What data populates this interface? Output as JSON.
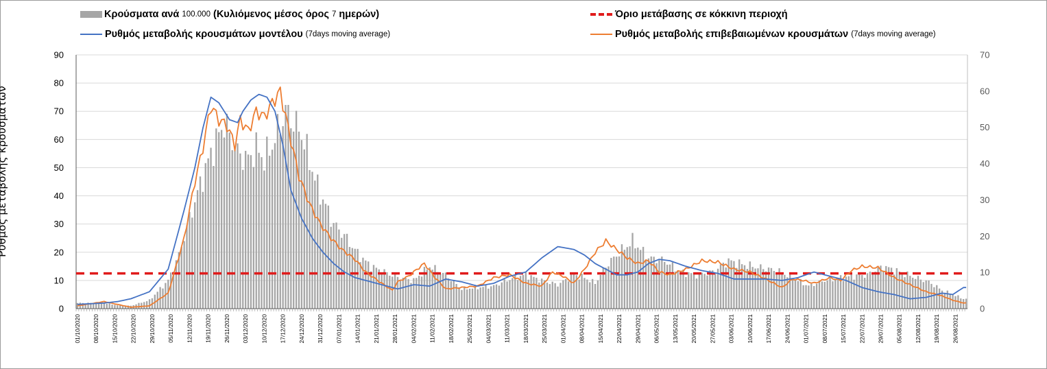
{
  "chart_data": {
    "type": "bar",
    "legend": {
      "cases_bar": {
        "text": "Κρούσματα ανά",
        "num": "100.000",
        "paren": "(Κυλιόμενος μέσος όρος",
        "days": "7",
        "end": "ημερών)"
      },
      "threshold": {
        "text": "Όριο μετάβασης σε κόκκινη περιοχή"
      },
      "model_line": {
        "text": "Ρυθμός μεταβολής κρουσμάτων μοντέλου",
        "small": "(7days moving average)"
      },
      "confirmed_line": {
        "text": "Ρυθμός μεταβολής επιβεβαιωμένων κρουσμάτων",
        "small": "(7days moving average)"
      }
    },
    "ylabel": "Ρυθμός μεταβολής κρουσμάτων",
    "ylim_left": [
      0,
      90
    ],
    "ylim_right": [
      0,
      70
    ],
    "left_ticks": [
      "0",
      "10",
      "20",
      "30",
      "40",
      "50",
      "60",
      "70",
      "80",
      "90"
    ],
    "right_ticks": [
      "0",
      "10",
      "20",
      "30",
      "40",
      "50",
      "60",
      "70"
    ],
    "x_tick_labels": [
      "01/10/2020",
      "08/10/2020",
      "15/10/2020",
      "22/10/2020",
      "29/10/2020",
      "05/11/2020",
      "12/11/2020",
      "19/11/2020",
      "26/11/2020",
      "03/12/2020",
      "10/12/2020",
      "17/12/2020",
      "24/12/2020",
      "31/12/2020",
      "07/01/2021",
      "14/01/2021",
      "21/01/2021",
      "28/01/2021",
      "04/02/2021",
      "11/02/2021",
      "18/02/2021",
      "25/02/2021",
      "04/03/2021",
      "11/03/2021",
      "18/03/2021",
      "25/03/2021",
      "01/04/2021",
      "08/04/2021",
      "15/04/2021",
      "22/04/2021",
      "29/04/2021",
      "06/05/2021",
      "13/05/2021",
      "20/05/2021",
      "27/05/2021",
      "03/06/2021",
      "10/06/2021",
      "17/06/2021",
      "24/06/2021",
      "01/07/2021",
      "08/07/2021",
      "15/07/2021",
      "22/07/2021",
      "29/07/2021",
      "05/08/2021",
      "12/08/2021",
      "19/08/2021",
      "26/08/2021"
    ],
    "threshold_value": 12.5,
    "colors": {
      "bars": "#a6a6a6",
      "model": "#4472c4",
      "confirmed": "#ed7d31",
      "threshold": "#e01b1b",
      "grid": "#d9d9d9"
    },
    "cases_keypoints": {
      "x": [
        0,
        10,
        15,
        20,
        27,
        34,
        38,
        42,
        46,
        50,
        55,
        60,
        64,
        67,
        70,
        73,
        78,
        84,
        90,
        96,
        100,
        103,
        106,
        110,
        115,
        120,
        126,
        132,
        138,
        144,
        150,
        156,
        162,
        168,
        174,
        180,
        186,
        190,
        194,
        198,
        202,
        208,
        214,
        220,
        226,
        232,
        238,
        244,
        250,
        256,
        262,
        268,
        274,
        280,
        284,
        290,
        296,
        302,
        308,
        314,
        319,
        324,
        328,
        332
      ],
      "y": [
        2.0,
        2.0,
        1.2,
        1.0,
        3.0,
        10.0,
        19.0,
        32.0,
        44.0,
        55.0,
        66.0,
        55.0,
        53.0,
        57.0,
        53.0,
        58.0,
        70.0,
        62.0,
        43.0,
        30.0,
        26.0,
        22.0,
        18.5,
        15.0,
        13.0,
        11.0,
        10.0,
        15.0,
        12.0,
        7.0,
        7.5,
        8.0,
        10.5,
        12.0,
        10.0,
        8.5,
        12.0,
        11.0,
        9.0,
        15.0,
        19.0,
        24.0,
        18.0,
        17.0,
        13.0,
        12.0,
        13.0,
        17.0,
        15.5,
        14.5,
        13.5,
        11.0,
        8.0,
        10.0,
        10.5,
        11.5,
        12.0,
        15.0,
        13.0,
        11.0,
        9.5,
        6.5,
        5.0,
        3.5
      ]
    },
    "model_keypoints": {
      "x": [
        0,
        10,
        15,
        20,
        27,
        34,
        40,
        44,
        47,
        50,
        53,
        57,
        60,
        62,
        65,
        68,
        71,
        74,
        77,
        80,
        84,
        88,
        92,
        96,
        100,
        104,
        108,
        114,
        120,
        126,
        132,
        138,
        144,
        150,
        156,
        162,
        168,
        174,
        180,
        186,
        190,
        194,
        198,
        202,
        206,
        210,
        214,
        218,
        222,
        228,
        234,
        240,
        246,
        252,
        258,
        264,
        270,
        276,
        282,
        288,
        294,
        300,
        306,
        312,
        318,
        324,
        328,
        332
      ],
      "y": [
        1.5,
        2.0,
        2.5,
        3.5,
        6.0,
        14.0,
        35.0,
        50.0,
        64.0,
        75.0,
        73.0,
        67.0,
        66.0,
        70.0,
        74.0,
        76.0,
        75.0,
        70.0,
        58.0,
        42.0,
        32.0,
        25.0,
        20.0,
        16.0,
        13.0,
        11.0,
        10.0,
        8.5,
        7.0,
        8.5,
        8.0,
        10.5,
        9.5,
        8.0,
        9.0,
        11.5,
        13.0,
        18.0,
        22.0,
        21.0,
        19.0,
        16.0,
        14.0,
        12.0,
        12.0,
        13.0,
        16.0,
        17.5,
        17.0,
        15.0,
        13.5,
        12.5,
        10.5,
        10.5,
        10.5,
        10.0,
        11.0,
        13.0,
        11.5,
        10.0,
        7.5,
        6.0,
        5.0,
        3.5,
        4.0,
        5.5,
        5.0,
        7.5
      ]
    },
    "confirmed_keypoints": {
      "x": [
        0,
        10,
        15,
        20,
        27,
        34,
        40,
        44,
        47,
        50,
        53,
        56,
        59,
        61,
        64,
        67,
        70,
        73,
        76,
        79,
        83,
        87,
        91,
        95,
        99,
        104,
        108,
        114,
        118,
        120,
        124,
        130,
        134,
        138,
        144,
        150,
        156,
        162,
        168,
        174,
        178,
        182,
        186,
        190,
        194,
        198,
        202,
        206,
        210,
        214,
        218,
        222,
        228,
        234,
        240,
        246,
        252,
        258,
        264,
        268,
        272,
        276,
        282,
        286,
        290,
        294,
        300,
        306,
        312,
        318,
        324,
        328,
        332
      ],
      "y": [
        1.0,
        2.5,
        1.5,
        0.5,
        1.0,
        5.5,
        25.0,
        45.0,
        57.0,
        72.0,
        67.0,
        65.0,
        58.0,
        67.0,
        63.0,
        70.0,
        68.0,
        73.0,
        77.0,
        64.0,
        47.0,
        37.0,
        30.0,
        25.0,
        21.0,
        17.5,
        13.0,
        9.0,
        6.5,
        9.5,
        11.5,
        16.0,
        11.0,
        7.0,
        7.5,
        8.0,
        11.0,
        12.0,
        9.0,
        8.0,
        13.0,
        11.5,
        9.0,
        14.0,
        20.0,
        24.0,
        21.0,
        18.0,
        16.0,
        17.0,
        13.0,
        12.0,
        14.0,
        17.0,
        16.5,
        14.0,
        13.0,
        10.5,
        7.5,
        10.5,
        10.0,
        9.0,
        11.0,
        10.0,
        13.5,
        15.0,
        14.5,
        11.0,
        8.5,
        6.0,
        4.5,
        3.0,
        2.0
      ]
    }
  }
}
